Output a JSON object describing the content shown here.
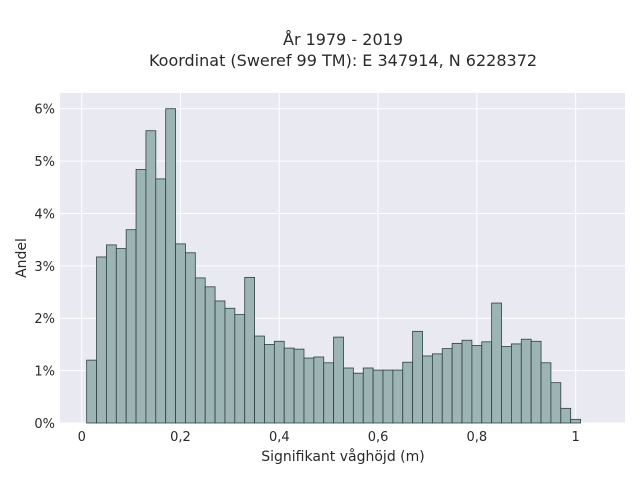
{
  "chart_data": {
    "type": "bar",
    "title_line1": "År 1979 - 2019",
    "title_line2": "Koordinat (Sweref 99 TM): E 347914, N 6228372",
    "xlabel": "Signifikant våghöjd (m)",
    "ylabel": "Andel",
    "xlim": [
      -0.044,
      1.1
    ],
    "ylim": [
      0,
      6.3
    ],
    "x_ticks": [
      0,
      0.2,
      0.4,
      0.6,
      0.8,
      1
    ],
    "x_tick_labels": [
      "0",
      "0,2",
      "0,4",
      "0,6",
      "0,8",
      "1"
    ],
    "y_ticks": [
      0,
      1,
      2,
      3,
      4,
      5,
      6
    ],
    "y_tick_labels": [
      "0%",
      "1%",
      "2%",
      "3%",
      "4%",
      "5%",
      "6%"
    ],
    "bin_start": 0.01,
    "bin_width": 0.02,
    "values": [
      1.2,
      3.17,
      3.4,
      3.33,
      3.69,
      4.84,
      5.58,
      4.66,
      6.0,
      3.42,
      3.25,
      2.77,
      2.6,
      2.33,
      2.19,
      2.07,
      2.78,
      1.66,
      1.5,
      1.56,
      1.43,
      1.41,
      1.24,
      1.26,
      1.15,
      1.64,
      1.05,
      0.95,
      1.05,
      1.01,
      1.01,
      1.01,
      1.16,
      1.75,
      1.28,
      1.32,
      1.42,
      1.52,
      1.58,
      1.48,
      1.55,
      2.29,
      1.46,
      1.51,
      1.6,
      1.56,
      1.15,
      0.77,
      0.28,
      0.07
    ],
    "grid": true,
    "colors": {
      "bar_fill": "#9db4b4",
      "bar_stroke": "#2f4040",
      "plot_bg": "#e9e9f1",
      "grid": "#ffffff"
    }
  }
}
